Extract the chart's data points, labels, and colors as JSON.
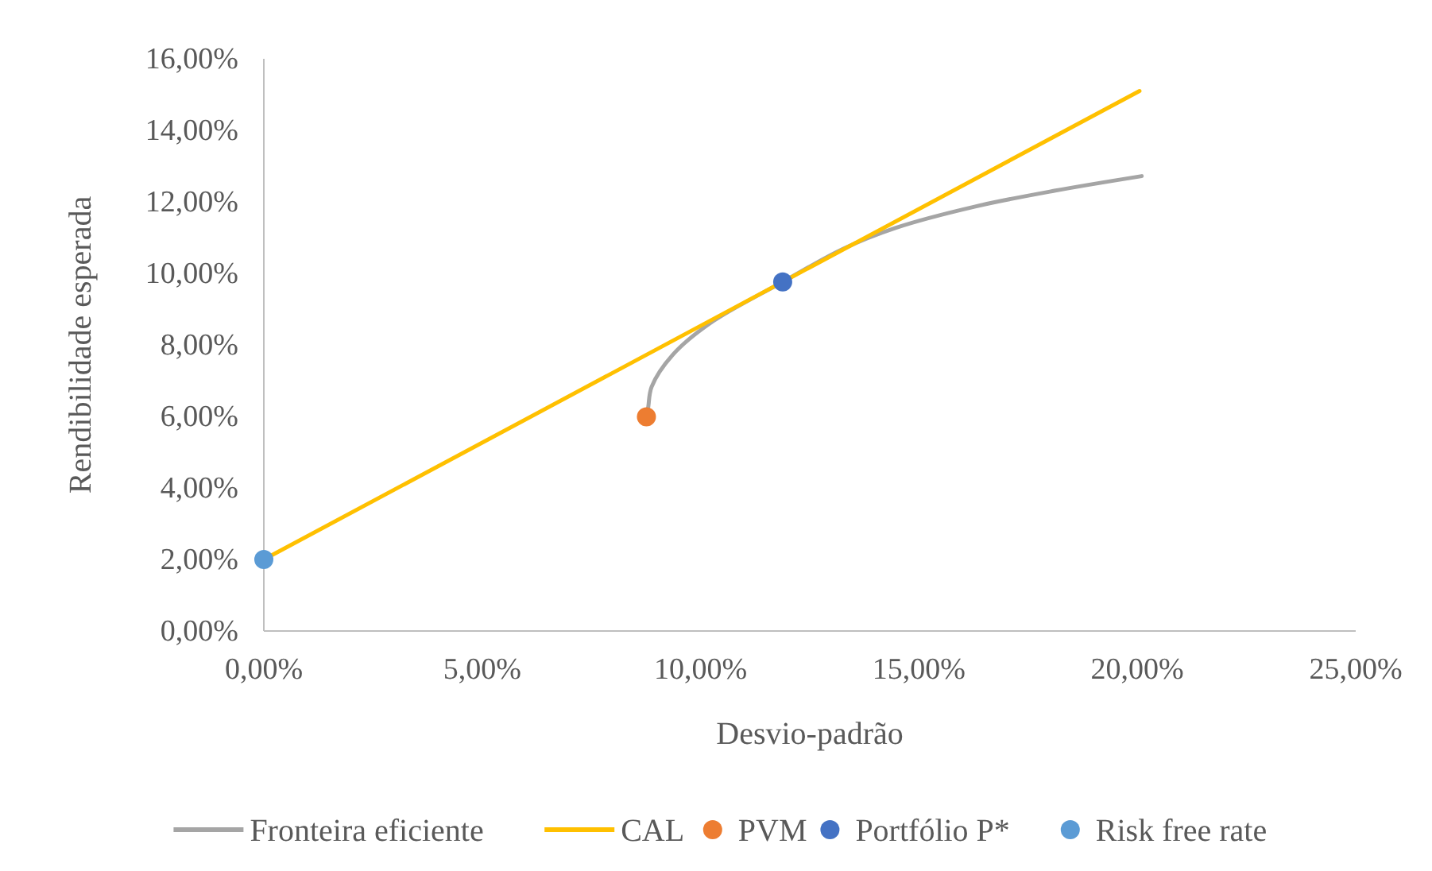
{
  "chart_data": {
    "type": "line",
    "xlabel": "Desvio-padrão",
    "ylabel": "Rendibilidade esperada",
    "xlim": [
      0,
      25
    ],
    "xticks": [
      {
        "value": 0,
        "label": "0,00%"
      },
      {
        "value": 5,
        "label": "5,00%"
      },
      {
        "value": 10,
        "label": "10,00%"
      },
      {
        "value": 15,
        "label": "15,00%"
      },
      {
        "value": 20,
        "label": "20,00%"
      },
      {
        "value": 25,
        "label": "25,00%"
      }
    ],
    "ylim": [
      0,
      16
    ],
    "yticks": [
      {
        "value": 0,
        "label": "0,00%"
      },
      {
        "value": 2,
        "label": "2,00%"
      },
      {
        "value": 4,
        "label": "4,00%"
      },
      {
        "value": 6,
        "label": "6,00%"
      },
      {
        "value": 8,
        "label": "8,00%"
      },
      {
        "value": 10,
        "label": "10,00%"
      },
      {
        "value": 12,
        "label": "12,00%"
      },
      {
        "value": 14,
        "label": "14,00%"
      },
      {
        "value": 16,
        "label": "16,00%"
      }
    ],
    "grid": false,
    "legend": "bottom",
    "series": [
      {
        "name": "Fronteira eficiente",
        "color": "#a5a5a5",
        "x": [
          8.76,
          8.8,
          8.88,
          9.36,
          10.21,
          11.88,
          13.25,
          14.46,
          16.29,
          18.1,
          20.1
        ],
        "values": [
          5.99,
          6.25,
          6.83,
          7.72,
          8.6,
          9.76,
          10.68,
          11.27,
          11.87,
          12.31,
          12.72
        ]
      },
      {
        "name": "CAL",
        "color": "#ffc000",
        "x": [
          0,
          20.05
        ],
        "values": [
          2,
          15.1
        ]
      },
      {
        "name": "PVM",
        "type": "scatter",
        "color": "#ed7d31",
        "x": [
          8.76
        ],
        "values": [
          5.99
        ]
      },
      {
        "name": "Portfólio P*",
        "type": "scatter",
        "color": "#4472c4",
        "x": [
          11.88
        ],
        "values": [
          9.76
        ]
      },
      {
        "name": "Risk free rate",
        "type": "scatter",
        "color": "#5b9bd5",
        "x": [
          0
        ],
        "values": [
          2
        ]
      }
    ]
  }
}
